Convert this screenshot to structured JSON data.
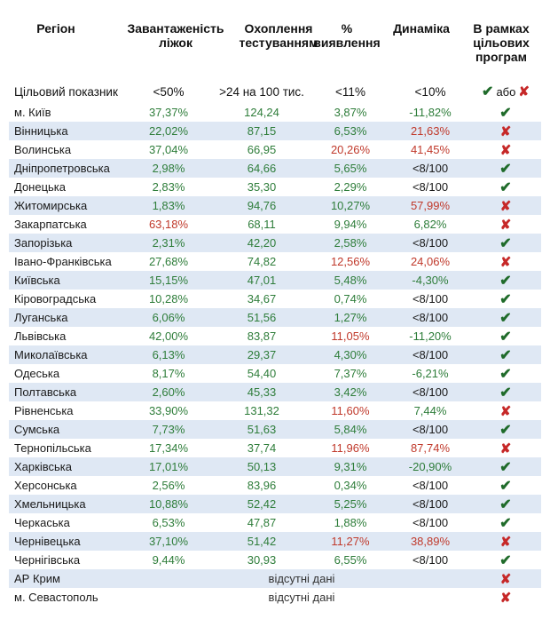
{
  "headers": {
    "region": "Регіон",
    "c1": [
      "Завантаженість",
      "ліжок"
    ],
    "c2": [
      "Охоплення",
      "тестуванням"
    ],
    "c3": [
      "%",
      "виявлення"
    ],
    "c4": [
      "Динаміка"
    ],
    "c5": [
      "В рамках",
      "цільових",
      "програм"
    ]
  },
  "target": {
    "label": "Цільовий показник",
    "c1": "<50%",
    "c2": ">24 на 100 тис.",
    "c3": "<11%",
    "c4": "<10%",
    "c5_sep": "або"
  },
  "colors": {
    "green": "#2e7d3a",
    "red": "#c0392b",
    "stripe": "#dfe8f4"
  },
  "rows": [
    {
      "region": "м. Київ",
      "c1": "37,37%",
      "c1s": "g",
      "c2": "124,24",
      "c2s": "g",
      "c3": "3,87%",
      "c3s": "g",
      "c4": "-11,82%",
      "c4s": "g",
      "ok": true
    },
    {
      "region": "Вінницька",
      "c1": "22,02%",
      "c1s": "g",
      "c2": "87,15",
      "c2s": "g",
      "c3": "6,53%",
      "c3s": "g",
      "c4": "21,63%",
      "c4s": "r",
      "ok": false
    },
    {
      "region": "Волинська",
      "c1": "37,04%",
      "c1s": "g",
      "c2": "66,95",
      "c2s": "g",
      "c3": "20,26%",
      "c3s": "r",
      "c4": "41,45%",
      "c4s": "r",
      "ok": false
    },
    {
      "region": "Дніпропетровська",
      "c1": "2,98%",
      "c1s": "g",
      "c2": "64,66",
      "c2s": "g",
      "c3": "5,65%",
      "c3s": "g",
      "c4": "<8/100",
      "c4s": "k",
      "ok": true
    },
    {
      "region": "Донецька",
      "c1": "2,83%",
      "c1s": "g",
      "c2": "35,30",
      "c2s": "g",
      "c3": "2,29%",
      "c3s": "g",
      "c4": "<8/100",
      "c4s": "k",
      "ok": true
    },
    {
      "region": "Житомирська",
      "c1": "1,83%",
      "c1s": "g",
      "c2": "94,76",
      "c2s": "g",
      "c3": "10,27%",
      "c3s": "g",
      "c4": "57,99%",
      "c4s": "r",
      "ok": false
    },
    {
      "region": "Закарпатська",
      "c1": "63,18%",
      "c1s": "r",
      "c2": "68,11",
      "c2s": "g",
      "c3": "9,94%",
      "c3s": "g",
      "c4": "6,82%",
      "c4s": "g",
      "ok": false
    },
    {
      "region": "Запорізька",
      "c1": "2,31%",
      "c1s": "g",
      "c2": "42,20",
      "c2s": "g",
      "c3": "2,58%",
      "c3s": "g",
      "c4": "<8/100",
      "c4s": "k",
      "ok": true
    },
    {
      "region": "Івано-Франківська",
      "c1": "27,68%",
      "c1s": "g",
      "c2": "74,82",
      "c2s": "g",
      "c3": "12,56%",
      "c3s": "r",
      "c4": "24,06%",
      "c4s": "r",
      "ok": false
    },
    {
      "region": "Київська",
      "c1": "15,15%",
      "c1s": "g",
      "c2": "47,01",
      "c2s": "g",
      "c3": "5,48%",
      "c3s": "g",
      "c4": "-4,30%",
      "c4s": "g",
      "ok": true
    },
    {
      "region": "Кіровоградська",
      "c1": "10,28%",
      "c1s": "g",
      "c2": "34,67",
      "c2s": "g",
      "c3": "0,74%",
      "c3s": "g",
      "c4": "<8/100",
      "c4s": "k",
      "ok": true
    },
    {
      "region": "Луганська",
      "c1": "6,06%",
      "c1s": "g",
      "c2": "51,56",
      "c2s": "g",
      "c3": "1,27%",
      "c3s": "g",
      "c4": "<8/100",
      "c4s": "k",
      "ok": true
    },
    {
      "region": "Львівська",
      "c1": "42,00%",
      "c1s": "g",
      "c2": "83,87",
      "c2s": "g",
      "c3": "11,05%",
      "c3s": "r",
      "c4": "-11,20%",
      "c4s": "g",
      "ok": true
    },
    {
      "region": "Миколаївська",
      "c1": "6,13%",
      "c1s": "g",
      "c2": "29,37",
      "c2s": "g",
      "c3": "4,30%",
      "c3s": "g",
      "c4": "<8/100",
      "c4s": "k",
      "ok": true
    },
    {
      "region": "Одеська",
      "c1": "8,17%",
      "c1s": "g",
      "c2": "54,40",
      "c2s": "g",
      "c3": "7,37%",
      "c3s": "g",
      "c4": "-6,21%",
      "c4s": "g",
      "ok": true
    },
    {
      "region": "Полтавська",
      "c1": "2,60%",
      "c1s": "g",
      "c2": "45,33",
      "c2s": "g",
      "c3": "3,42%",
      "c3s": "g",
      "c4": "<8/100",
      "c4s": "k",
      "ok": true
    },
    {
      "region": "Рівненська",
      "c1": "33,90%",
      "c1s": "g",
      "c2": "131,32",
      "c2s": "g",
      "c3": "11,60%",
      "c3s": "r",
      "c4": "7,44%",
      "c4s": "g",
      "ok": false
    },
    {
      "region": "Сумська",
      "c1": "7,73%",
      "c1s": "g",
      "c2": "51,63",
      "c2s": "g",
      "c3": "5,84%",
      "c3s": "g",
      "c4": "<8/100",
      "c4s": "k",
      "ok": true
    },
    {
      "region": "Тернопільська",
      "c1": "17,34%",
      "c1s": "g",
      "c2": "37,74",
      "c2s": "g",
      "c3": "11,96%",
      "c3s": "r",
      "c4": "87,74%",
      "c4s": "r",
      "ok": false
    },
    {
      "region": "Харківська",
      "c1": "17,01%",
      "c1s": "g",
      "c2": "50,13",
      "c2s": "g",
      "c3": "9,31%",
      "c3s": "g",
      "c4": "-20,90%",
      "c4s": "g",
      "ok": true
    },
    {
      "region": "Херсонська",
      "c1": "2,56%",
      "c1s": "g",
      "c2": "83,96",
      "c2s": "g",
      "c3": "0,34%",
      "c3s": "g",
      "c4": "<8/100",
      "c4s": "k",
      "ok": true
    },
    {
      "region": "Хмельницька",
      "c1": "10,88%",
      "c1s": "g",
      "c2": "52,42",
      "c2s": "g",
      "c3": "5,25%",
      "c3s": "g",
      "c4": "<8/100",
      "c4s": "k",
      "ok": true
    },
    {
      "region": "Черкаська",
      "c1": "6,53%",
      "c1s": "g",
      "c2": "47,87",
      "c2s": "g",
      "c3": "1,88%",
      "c3s": "g",
      "c4": "<8/100",
      "c4s": "k",
      "ok": true
    },
    {
      "region": "Чернівецька",
      "c1": "37,10%",
      "c1s": "g",
      "c2": "51,42",
      "c2s": "g",
      "c3": "11,27%",
      "c3s": "r",
      "c4": "38,89%",
      "c4s": "r",
      "ok": false
    },
    {
      "region": "Чернігівська",
      "c1": "9,44%",
      "c1s": "g",
      "c2": "30,93",
      "c2s": "g",
      "c3": "6,55%",
      "c3s": "g",
      "c4": "<8/100",
      "c4s": "k",
      "ok": true
    },
    {
      "region": "АР Крим",
      "na": "відсутні дані",
      "ok": false
    },
    {
      "region": "м. Севастополь",
      "na": "відсутні дані",
      "ok": false
    }
  ]
}
